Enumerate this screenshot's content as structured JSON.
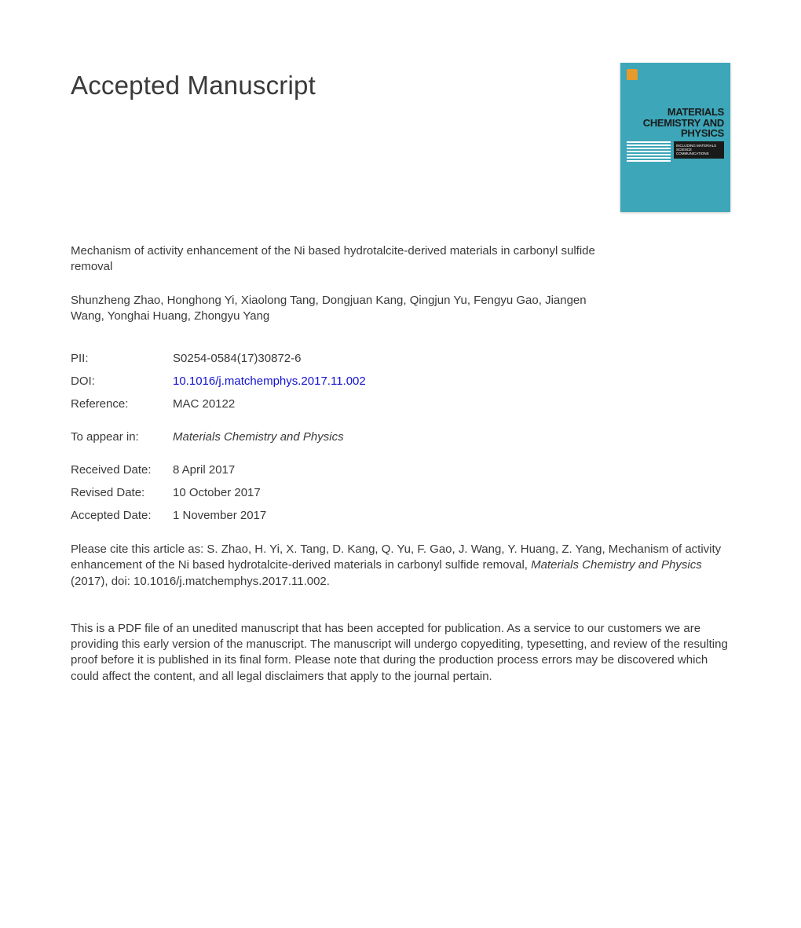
{
  "header": {
    "title": "Accepted Manuscript"
  },
  "cover": {
    "line1": "MATERIALS",
    "line2": "CHEMISTRY AND",
    "line3": "PHYSICS",
    "sub": "INCLUDING MATERIALS SCIENCE COMMUNICATIONS",
    "bg_color": "#3da6b8"
  },
  "paper": {
    "title": "Mechanism of activity enhancement of the Ni based hydrotalcite-derived materials in carbonyl sulfide removal",
    "authors": "Shunzheng Zhao, Honghong Yi, Xiaolong Tang, Dongjuan Kang, Qingjun Yu, Fengyu Gao, Jiangen Wang, Yonghai Huang, Zhongyu Yang"
  },
  "meta": {
    "pii_label": "PII:",
    "pii_value": "S0254-0584(17)30872-6",
    "doi_label": "DOI:",
    "doi_value": "10.1016/j.matchemphys.2017.11.002",
    "ref_label": "Reference:",
    "ref_value": "MAC 20122",
    "appear_label": "To appear in:",
    "appear_value": "Materials Chemistry and Physics",
    "received_label": "Received Date:",
    "received_value": "8 April 2017",
    "revised_label": "Revised Date:",
    "revised_value": "10 October 2017",
    "accepted_label": "Accepted Date:",
    "accepted_value": "1 November 2017"
  },
  "citation": {
    "prefix": "Please cite this article as: S. Zhao, H. Yi, X. Tang, D. Kang, Q. Yu, F. Gao, J. Wang, Y. Huang, Z. Yang, Mechanism of activity enhancement of the Ni based hydrotalcite-derived materials in carbonyl sulfide removal, ",
    "journal": "Materials Chemistry and Physics",
    "suffix": " (2017), doi: 10.1016/j.matchemphys.2017.11.002."
  },
  "disclaimer": "This is a PDF file of an unedited manuscript that has been accepted for publication. As a service to our customers we are providing this early version of the manuscript. The manuscript will undergo copyediting, typesetting, and review of the resulting proof before it is published in its final form. Please note that during the production process errors may be discovered which could affect the content, and all legal disclaimers that apply to the journal pertain."
}
